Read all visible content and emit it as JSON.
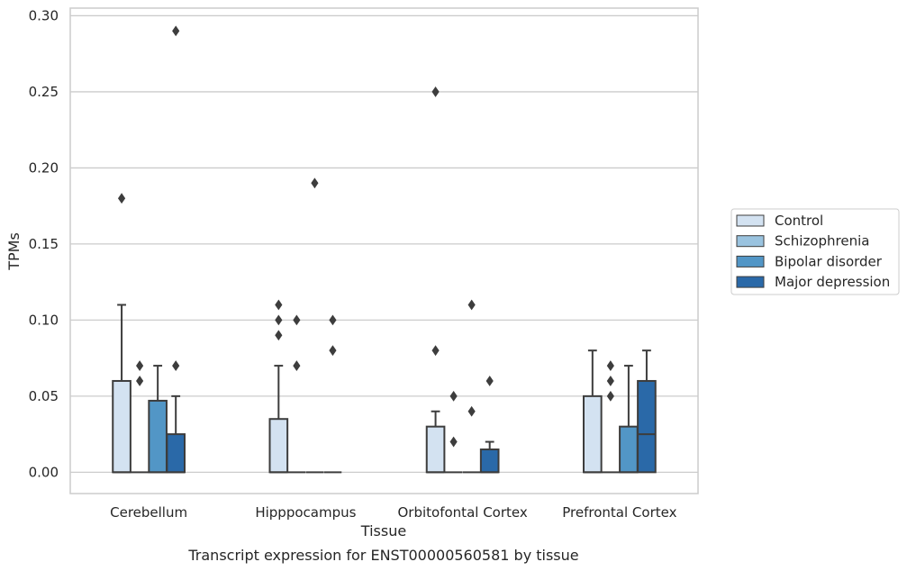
{
  "chart_data": {
    "type": "box",
    "caption": "Transcript expression for ENST00000560581 by tissue",
    "xlabel": "Tissue",
    "ylabel": "TPMs",
    "ylim": [
      -0.014,
      0.305
    ],
    "yticks": [
      0.0,
      0.05,
      0.1,
      0.15,
      0.2,
      0.25,
      0.3
    ],
    "ytick_labels": [
      "0.00",
      "0.05",
      "0.10",
      "0.15",
      "0.20",
      "0.25",
      "0.30"
    ],
    "categories": [
      "Cerebellum",
      "Hipppocampus",
      "Orbitofontal Cortex",
      "Prefrontal Cortex"
    ],
    "grid": true,
    "legend_position": "right",
    "series": [
      {
        "name": "Control",
        "color": "#d3e2f1",
        "boxes": [
          {
            "q1": 0.0,
            "median": 0.0,
            "q3": 0.06,
            "whisker_low": 0.0,
            "whisker_high": 0.11,
            "outliers": [
              0.18
            ]
          },
          {
            "q1": 0.0,
            "median": 0.0,
            "q3": 0.035,
            "whisker_low": 0.0,
            "whisker_high": 0.07,
            "outliers": [
              0.09,
              0.1,
              0.11
            ]
          },
          {
            "q1": 0.0,
            "median": 0.0,
            "q3": 0.03,
            "whisker_low": 0.0,
            "whisker_high": 0.04,
            "outliers": [
              0.08,
              0.25
            ]
          },
          {
            "q1": 0.0,
            "median": 0.0,
            "q3": 0.05,
            "whisker_low": 0.0,
            "whisker_high": 0.08,
            "outliers": []
          }
        ]
      },
      {
        "name": "Schizophrenia",
        "color": "#9ac3df",
        "boxes": [
          {
            "q1": 0.0,
            "median": 0.0,
            "q3": 0.0,
            "whisker_low": 0.0,
            "whisker_high": 0.0,
            "outliers": [
              0.06,
              0.07
            ]
          },
          {
            "q1": 0.0,
            "median": 0.0,
            "q3": 0.0,
            "whisker_low": 0.0,
            "whisker_high": 0.0,
            "outliers": [
              0.07,
              0.1
            ]
          },
          {
            "q1": 0.0,
            "median": 0.0,
            "q3": 0.0,
            "whisker_low": 0.0,
            "whisker_high": 0.0,
            "outliers": [
              0.02,
              0.05
            ]
          },
          {
            "q1": 0.0,
            "median": 0.0,
            "q3": 0.0,
            "whisker_low": 0.0,
            "whisker_high": 0.0,
            "outliers": [
              0.05,
              0.06,
              0.07
            ]
          }
        ]
      },
      {
        "name": "Bipolar disorder",
        "color": "#5296c6",
        "boxes": [
          {
            "q1": 0.0,
            "median": 0.0,
            "q3": 0.047,
            "whisker_low": 0.0,
            "whisker_high": 0.07,
            "outliers": []
          },
          {
            "q1": 0.0,
            "median": 0.0,
            "q3": 0.0,
            "whisker_low": 0.0,
            "whisker_high": 0.0,
            "outliers": [
              0.19
            ]
          },
          {
            "q1": 0.0,
            "median": 0.0,
            "q3": 0.0,
            "whisker_low": 0.0,
            "whisker_high": 0.0,
            "outliers": [
              0.04,
              0.11
            ]
          },
          {
            "q1": 0.0,
            "median": 0.0,
            "q3": 0.03,
            "whisker_low": 0.0,
            "whisker_high": 0.07,
            "outliers": []
          }
        ]
      },
      {
        "name": "Major depression",
        "color": "#2a69a8",
        "boxes": [
          {
            "q1": 0.0,
            "median": 0.0,
            "q3": 0.025,
            "whisker_low": 0.0,
            "whisker_high": 0.05,
            "outliers": [
              0.07,
              0.29
            ]
          },
          {
            "q1": 0.0,
            "median": 0.0,
            "q3": 0.0,
            "whisker_low": 0.0,
            "whisker_high": 0.0,
            "outliers": [
              0.08,
              0.1
            ]
          },
          {
            "q1": 0.0,
            "median": 0.0,
            "q3": 0.015,
            "whisker_low": 0.0,
            "whisker_high": 0.02,
            "outliers": [
              0.06
            ]
          },
          {
            "q1": 0.0,
            "median": 0.025,
            "q3": 0.06,
            "whisker_low": 0.0,
            "whisker_high": 0.08,
            "outliers": []
          }
        ]
      }
    ]
  }
}
